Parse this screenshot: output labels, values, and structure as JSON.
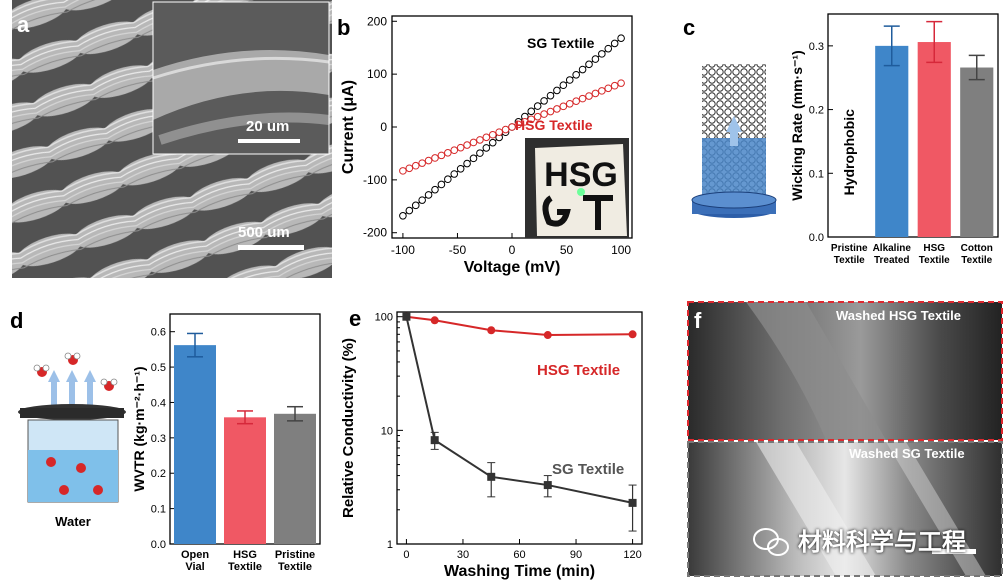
{
  "panels": {
    "a": {
      "label": "a",
      "inset_scale": "20 um",
      "main_scale": "500 um"
    },
    "b": {
      "label": "b",
      "inset_text": "HSG"
    },
    "c": {
      "label": "c"
    },
    "d": {
      "label": "d",
      "illustration_label": "Water"
    },
    "e": {
      "label": "e"
    },
    "f": {
      "label": "f",
      "top_title": "Washed HSG Textile",
      "bottom_title": "Washed SG Textile",
      "watermark": "材料科学与工程"
    }
  },
  "chart_data": [
    {
      "id": "b",
      "type": "line",
      "xlabel": "Voltage (mV)",
      "ylabel": "Current (μA)",
      "xlim": [
        -110,
        110
      ],
      "ylim": [
        -210,
        210
      ],
      "xticks": [
        -100,
        -50,
        0,
        50,
        100
      ],
      "yticks": [
        -200,
        -100,
        0,
        100,
        200
      ],
      "series": [
        {
          "name": "SG Textile",
          "color": "#000000",
          "x": [
            -100,
            100
          ],
          "y": [
            -168,
            168
          ]
        },
        {
          "name": "HSG Textile",
          "color": "#d62728",
          "x": [
            -100,
            100
          ],
          "y": [
            -83,
            83
          ]
        }
      ]
    },
    {
      "id": "c",
      "type": "bar",
      "ylabel": "Wicking Rate (mm·s⁻¹)",
      "ylim": [
        0,
        0.35
      ],
      "yticks": [
        0.0,
        0.1,
        0.2,
        0.3
      ],
      "categories": [
        "Pristine\nTextile",
        "Alkaline\nTreated",
        "HSG\nTextile",
        "Cotton\nTextile"
      ],
      "values": [
        null,
        0.3,
        0.306,
        0.266
      ],
      "errors": [
        null,
        0.031,
        0.032,
        0.019
      ],
      "colors": [
        "#ffffff",
        "#3f86c9",
        "#f05864",
        "#7f7f7f"
      ],
      "annotations": [
        {
          "category": "Pristine\nTextile",
          "text": "Hydrophobic"
        }
      ]
    },
    {
      "id": "d",
      "type": "bar",
      "ylabel": "WVTR (kg·m⁻²·h⁻¹)",
      "ylim": [
        0,
        0.65
      ],
      "yticks": [
        0.0,
        0.1,
        0.2,
        0.3,
        0.4,
        0.5,
        0.6
      ],
      "categories": [
        "Open\nVial",
        "HSG\nTextile",
        "Pristine\nTextile"
      ],
      "values": [
        0.562,
        0.358,
        0.368
      ],
      "errors": [
        0.033,
        0.018,
        0.02
      ],
      "colors": [
        "#3f86c9",
        "#f05864",
        "#7f7f7f"
      ]
    },
    {
      "id": "e",
      "type": "line",
      "yscale": "log",
      "xlabel": "Washing Time (min)",
      "ylabel": "Relative Conductivity (%)",
      "xlim": [
        -5,
        125
      ],
      "ylim": [
        1,
        110
      ],
      "xticks": [
        0,
        30,
        60,
        90,
        120
      ],
      "yticks": [
        1,
        10,
        100
      ],
      "series": [
        {
          "name": "HSG Textile",
          "color": "#d62728",
          "x": [
            0,
            15,
            45,
            75,
            120
          ],
          "y": [
            100,
            93,
            76,
            69,
            70
          ],
          "err": [
            0,
            0,
            0,
            0,
            0
          ]
        },
        {
          "name": "SG Textile",
          "color": "#333333",
          "x": [
            0,
            15,
            45,
            75,
            120
          ],
          "y": [
            100,
            8.2,
            3.9,
            3.3,
            2.3
          ],
          "err": [
            0,
            1.4,
            1.3,
            0.7,
            1.0
          ]
        }
      ]
    }
  ]
}
